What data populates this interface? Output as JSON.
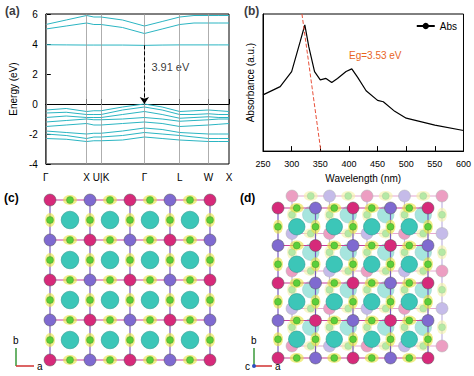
{
  "chart_data": [
    {
      "type": "line",
      "title": "(a)",
      "ylabel": "Energy (eV)",
      "color": "#2bb5c2",
      "x": [
        0,
        0.5,
        1,
        1.177,
        1.354,
        1.88,
        2.415,
        2.85,
        3.281,
        3.63,
        3.988,
        4.24,
        4.488
      ],
      "series": [
        {
          "values": [
            3.95,
            3.94,
            3.93,
            3.93,
            3.93,
            3.93,
            3.91,
            3.93,
            3.94,
            3.94,
            3.94,
            3.94,
            3.94
          ]
        },
        {
          "values": [
            5.0,
            5.2,
            5.4,
            5.3,
            5.3,
            5.1,
            4.7,
            5.0,
            5.3,
            5.4,
            5.4,
            5.4,
            5.4
          ]
        },
        {
          "values": [
            5.3,
            5.6,
            5.9,
            5.8,
            5.8,
            5.6,
            5.2,
            5.5,
            5.8,
            5.9,
            5.9,
            5.9,
            5.9
          ]
        },
        {
          "values": [
            -0.4,
            -0.3,
            -0.5,
            -0.45,
            -0.45,
            -0.2,
            0,
            -0.2,
            -0.5,
            -0.45,
            -0.4,
            -0.45,
            -0.5
          ]
        },
        {
          "values": [
            -0.6,
            -0.55,
            -0.7,
            -0.7,
            -0.7,
            -0.4,
            -0.2,
            -0.4,
            -0.7,
            -0.7,
            -0.65,
            -0.7,
            -0.7
          ]
        },
        {
          "values": [
            -0.9,
            -0.8,
            -0.9,
            -0.9,
            -0.9,
            -0.7,
            -0.5,
            -0.7,
            -0.95,
            -0.9,
            -0.85,
            -0.9,
            -0.9
          ]
        },
        {
          "values": [
            -1.2,
            -1.1,
            -1.0,
            -1.05,
            -1.05,
            -1.0,
            -0.9,
            -1.0,
            -1.15,
            -1.1,
            -1.05,
            -1.0,
            -1.0
          ]
        },
        {
          "values": [
            -1.5,
            -1.4,
            -1.3,
            -1.4,
            -1.4,
            -1.3,
            -1.2,
            -1.3,
            -1.5,
            -1.45,
            -1.4,
            -1.35,
            -1.3
          ]
        },
        {
          "values": [
            -1.8,
            -1.9,
            -2.0,
            -1.95,
            -1.95,
            -1.8,
            -1.6,
            -1.7,
            -1.9,
            -1.95,
            -2.0,
            -2.0,
            -2.0
          ]
        },
        {
          "values": [
            -2.0,
            -2.1,
            -2.3,
            -2.2,
            -2.2,
            -2.1,
            -1.9,
            -2.0,
            -2.1,
            -2.2,
            -2.3,
            -2.3,
            -2.3
          ]
        },
        {
          "values": [
            -2.3,
            -2.35,
            -2.5,
            -2.45,
            -2.45,
            -2.4,
            -2.2,
            -2.3,
            -2.4,
            -2.45,
            -2.5,
            -2.5,
            -2.5
          ]
        }
      ],
      "xlim": [
        0,
        4.488
      ],
      "xticks": [
        {
          "value": 0,
          "label": "Γ"
        },
        {
          "value": 1,
          "label": "X"
        },
        {
          "value": 1.354,
          "label": "U|K"
        },
        {
          "value": 2.415,
          "label": "Γ"
        },
        {
          "value": 3.281,
          "label": "L"
        },
        {
          "value": 3.988,
          "label": "W"
        },
        {
          "value": 4.488,
          "label": "X"
        }
      ],
      "ylim": [
        -4,
        6
      ],
      "yticks": [
        -4,
        -2,
        0,
        2,
        4,
        6
      ],
      "annotation": {
        "text": "3.91 eV",
        "x": 2.415,
        "from": 3.91,
        "to": 0
      }
    },
    {
      "type": "line",
      "title": "(b)",
      "xlabel": "Wavelength (nm)",
      "ylabel": "Absorbance (a.u.)",
      "x": [
        250,
        280,
        300,
        315,
        323,
        330,
        340,
        350,
        360,
        370,
        380,
        395,
        405,
        415,
        430,
        450,
        460,
        480,
        500,
        550,
        600
      ],
      "series": [
        {
          "name": "Abs",
          "color": "#000000",
          "values": [
            0.41,
            0.47,
            0.58,
            0.8,
            0.92,
            0.76,
            0.58,
            0.52,
            0.53,
            0.5,
            0.53,
            0.58,
            0.6,
            0.54,
            0.44,
            0.37,
            0.36,
            0.29,
            0.24,
            0.19,
            0.15
          ]
        }
      ],
      "xlim": [
        250,
        600
      ],
      "xticks": [
        250,
        300,
        350,
        400,
        450,
        500,
        550,
        600
      ],
      "ylim": [
        0,
        1
      ],
      "tick_labels": "x",
      "legend": "top-right",
      "fit_line": {
        "x": [
          318,
          351
        ],
        "y": [
          1,
          0
        ],
        "color": "#e8503a",
        "label": "Eg=3.53 eV"
      }
    }
  ],
  "structures": [
    {
      "label": "(c)",
      "axes": [
        "b",
        "a"
      ]
    },
    {
      "label": "(d)",
      "axes": [
        "b",
        "a",
        "c"
      ]
    }
  ]
}
